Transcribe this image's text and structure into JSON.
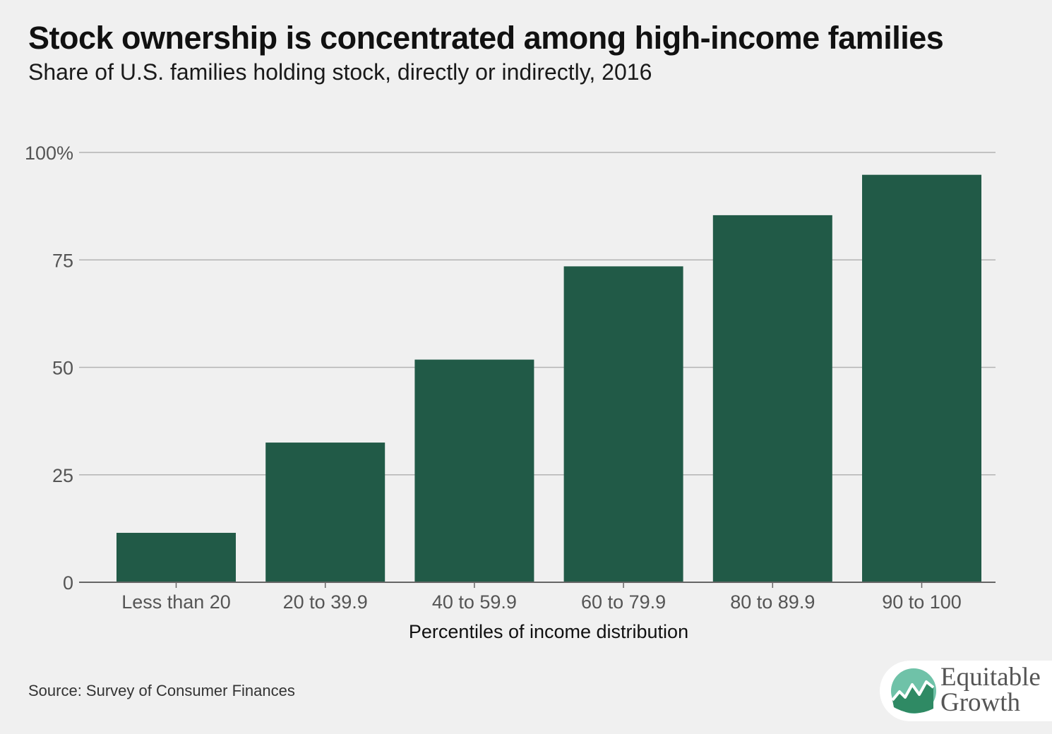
{
  "header": {
    "title": "Stock ownership is concentrated among high-income families",
    "subtitle": "Share of U.S. families holding stock, directly or indirectly, 2016"
  },
  "footer": {
    "source": "Source: Survey of Consumer Finances",
    "logo_line1": "Equitable",
    "logo_line2": "Growth"
  },
  "colors": {
    "bar": "#215a47",
    "gridline": "#b3b3b3",
    "axis": "#666666",
    "background": "#f0f0f0",
    "logo_green": "#2f8a64",
    "logo_teal": "#6fc2a8"
  },
  "chart_data": {
    "type": "bar",
    "title": "Stock ownership is concentrated among high-income families",
    "subtitle": "Share of U.S. families holding stock, directly or indirectly, 2016",
    "xlabel": "Percentiles of income distribution",
    "ylabel": "",
    "categories": [
      "Less than 20",
      "20 to 39.9",
      "40 to 59.9",
      "60 to 79.9",
      "80 to 89.9",
      "90 to 100"
    ],
    "values": [
      11.5,
      32.5,
      51.8,
      73.5,
      85.4,
      94.8
    ],
    "ylim": [
      0,
      100
    ],
    "yticks": [
      0,
      25,
      50,
      75,
      100
    ],
    "ytick_labels": [
      "0",
      "25",
      "50",
      "75",
      "100%"
    ],
    "grid": true,
    "legend": "none"
  }
}
